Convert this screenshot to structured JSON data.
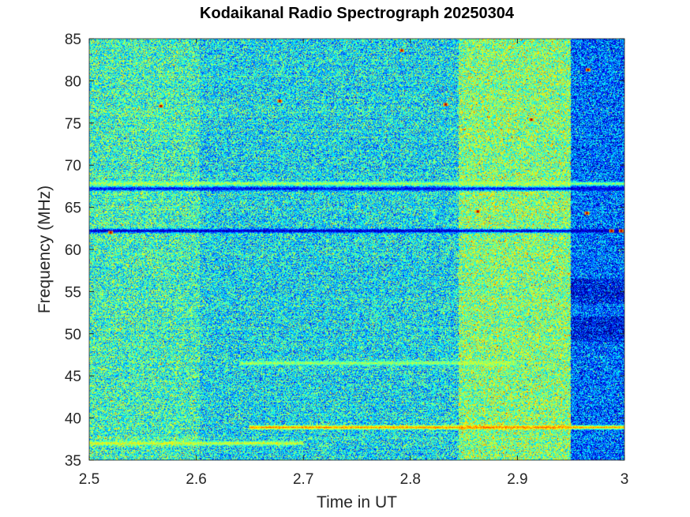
{
  "chart_data": {
    "type": "heatmap",
    "title": "Kodaikanal Radio Spectrograph  20250304",
    "xlabel": "Time in UT",
    "ylabel": "Frequency (MHz)",
    "xlim": [
      2.5,
      3.0
    ],
    "ylim": [
      35,
      85
    ],
    "x_ticks": [
      "2.5",
      "2.6",
      "2.7",
      "2.8",
      "2.9",
      "3"
    ],
    "y_ticks": [
      "35",
      "40",
      "45",
      "50",
      "55",
      "60",
      "65",
      "70",
      "75",
      "80",
      "85"
    ],
    "colormap": "jet",
    "grid": false,
    "time_segments": [
      {
        "x": [
          2.5,
          2.603
        ],
        "intensity": 0.42
      },
      {
        "x": [
          2.603,
          2.845
        ],
        "intensity": 0.36
      },
      {
        "x": [
          2.845,
          2.95
        ],
        "intensity": 0.5
      },
      {
        "x": [
          2.95,
          3.0
        ],
        "intensity": 0.22
      }
    ],
    "frequency_bands": [
      {
        "freq": 67.8,
        "kind": "bright",
        "intensity": 0.55
      },
      {
        "freq": 67.2,
        "kind": "dark",
        "intensity": 0.08
      },
      {
        "freq": 62.2,
        "kind": "dark",
        "intensity": 0.03
      },
      {
        "freq": 38.9,
        "kind": "bright",
        "intensity": 0.75,
        "x": [
          2.65,
          3.0
        ]
      },
      {
        "freq": 46.5,
        "kind": "bright",
        "intensity": 0.55,
        "x": [
          2.64,
          2.9
        ]
      },
      {
        "freq": 37.0,
        "kind": "bright",
        "intensity": 0.6,
        "x": [
          2.5,
          2.7
        ]
      }
    ],
    "hot_spots": [
      {
        "x": 2.567,
        "freq": 77.0
      },
      {
        "x": 2.833,
        "freq": 77.2
      },
      {
        "x": 2.863,
        "freq": 64.5
      },
      {
        "x": 2.913,
        "freq": 75.4
      },
      {
        "x": 2.966,
        "freq": 81.3
      },
      {
        "x": 2.965,
        "freq": 64.3
      },
      {
        "x": 2.988,
        "freq": 62.2
      },
      {
        "x": 2.997,
        "freq": 62.2
      },
      {
        "x": 2.52,
        "freq": 62.0
      },
      {
        "x": 2.792,
        "freq": 83.6
      },
      {
        "x": 2.678,
        "freq": 77.6
      }
    ]
  }
}
